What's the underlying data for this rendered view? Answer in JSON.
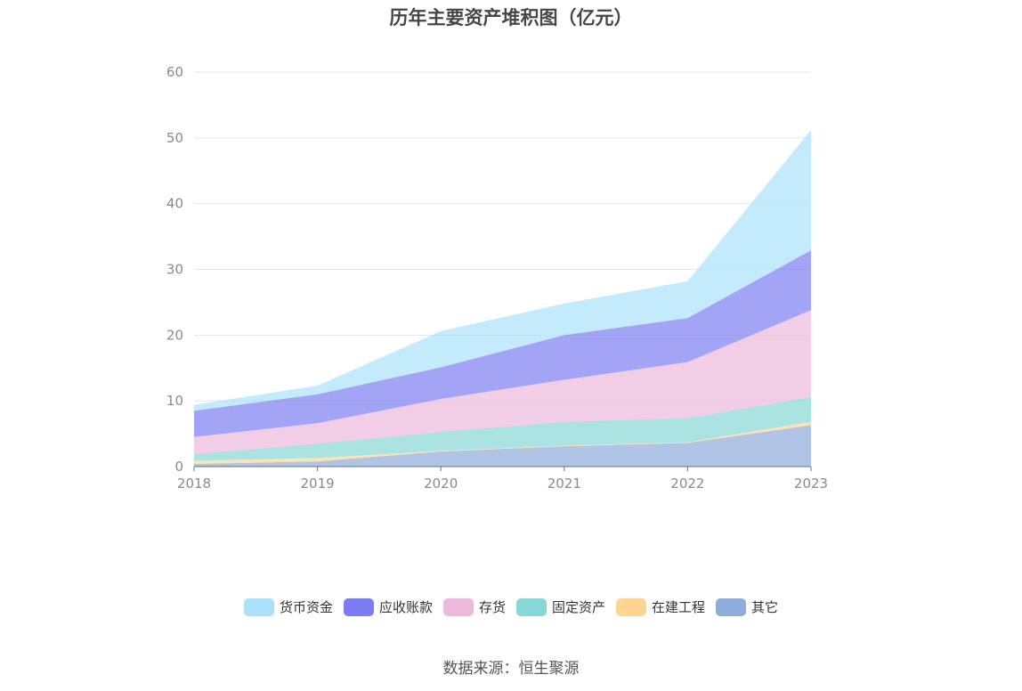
{
  "source_text": "数据来源：恒生聚源",
  "chart_data": {
    "type": "area",
    "stacked": true,
    "title": "历年主要资产堆积图（亿元）",
    "xlabel": "",
    "ylabel": "",
    "x": [
      "2018",
      "2019",
      "2020",
      "2021",
      "2022",
      "2023"
    ],
    "ylim": [
      0,
      60
    ],
    "yticks": [
      0,
      10,
      20,
      30,
      40,
      50,
      60
    ],
    "grid": true,
    "legend_position": "bottom",
    "series": [
      {
        "name": "其它",
        "color": "#8fadda",
        "values": [
          0.4,
          0.8,
          2.3,
          3.1,
          3.6,
          6.3
        ]
      },
      {
        "name": "在建工程",
        "color": "#ffd591",
        "values": [
          0.5,
          0.5,
          0.1,
          0.1,
          0.1,
          0.5
        ]
      },
      {
        "name": "固定资产",
        "color": "#88d7d7",
        "values": [
          1.0,
          2.2,
          2.9,
          3.6,
          3.7,
          3.8
        ]
      },
      {
        "name": "存货",
        "color": "#ebb9dc",
        "values": [
          2.6,
          3.1,
          5.0,
          6.4,
          8.5,
          13.2
        ]
      },
      {
        "name": "应收账款",
        "color": "#7c7df2",
        "values": [
          4.0,
          4.4,
          4.8,
          6.8,
          6.7,
          9.1
        ]
      },
      {
        "name": "货币资金",
        "color": "#a9e2fa",
        "values": [
          0.9,
          1.3,
          5.5,
          4.8,
          5.6,
          18.3
        ]
      }
    ],
    "legend_order": [
      "货币资金",
      "应收账款",
      "存货",
      "固定资产",
      "在建工程",
      "其它"
    ]
  }
}
